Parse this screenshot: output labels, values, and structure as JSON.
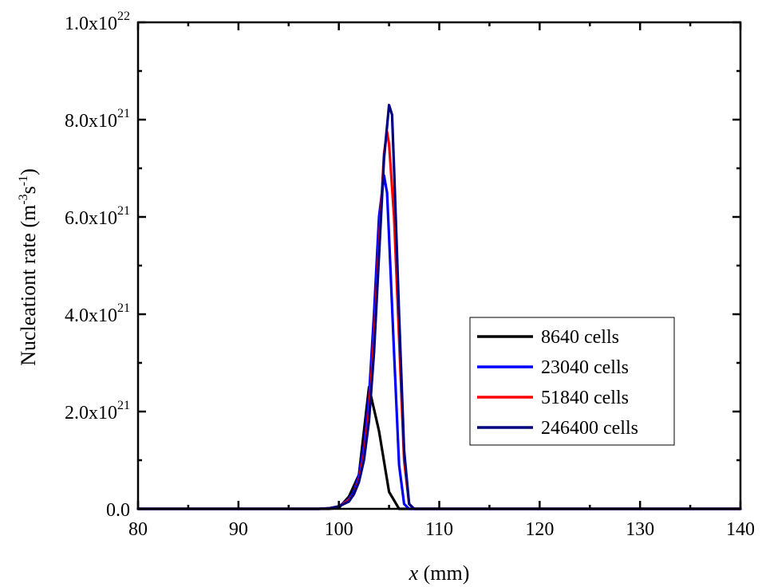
{
  "chart_data": {
    "type": "line",
    "title": "",
    "xlabel": {
      "var": "x",
      "unit": " (mm)"
    },
    "ylabel": {
      "main": "Nucleationt rate (m",
      "exp1": "-3",
      "mid": "s",
      "exp2": "-1",
      "tail": ")"
    },
    "xlim": [
      80,
      140
    ],
    "ylim": [
      0,
      1e+22
    ],
    "x_ticks": [
      {
        "value": 80,
        "label": "80"
      },
      {
        "value": 90,
        "label": "90"
      },
      {
        "value": 100,
        "label": "100"
      },
      {
        "value": 110,
        "label": "110"
      },
      {
        "value": 120,
        "label": "120"
      },
      {
        "value": 130,
        "label": "130"
      },
      {
        "value": 140,
        "label": "140"
      }
    ],
    "y_ticks": [
      {
        "value": 0,
        "mantissa": "0.0",
        "exp": ""
      },
      {
        "value": 2e+21,
        "mantissa": "2.0x10",
        "exp": "21"
      },
      {
        "value": 4e+21,
        "mantissa": "4.0x10",
        "exp": "21"
      },
      {
        "value": 6e+21,
        "mantissa": "6.0x10",
        "exp": "21"
      },
      {
        "value": 8e+21,
        "mantissa": "8.0x10",
        "exp": "21"
      },
      {
        "value": 1e+22,
        "mantissa": "1.0x10",
        "exp": "22"
      }
    ],
    "grid": false,
    "legend_position": "bottom-right",
    "series": [
      {
        "name": "8640 cells",
        "color": "#000000",
        "points": [
          [
            80,
            0
          ],
          [
            99,
            0
          ],
          [
            100,
            2e+19
          ],
          [
            101,
            2.5e+20
          ],
          [
            102,
            7e+20
          ],
          [
            103,
            2.5e+21
          ],
          [
            104,
            1.6e+21
          ],
          [
            105,
            3.5e+20
          ],
          [
            106,
            0
          ],
          [
            140,
            0
          ]
        ]
      },
      {
        "name": "23040 cells",
        "color": "#0000ff",
        "points": [
          [
            80,
            0
          ],
          [
            98,
            0
          ],
          [
            99,
            1e+19
          ],
          [
            100,
            5e+19
          ],
          [
            101,
            2e+20
          ],
          [
            101.5,
            3.5e+20
          ],
          [
            102,
            7e+20
          ],
          [
            102.5,
            1.3e+21
          ],
          [
            103,
            2.3e+21
          ],
          [
            103.5,
            4e+21
          ],
          [
            104,
            6e+21
          ],
          [
            104.5,
            6.85e+21
          ],
          [
            104.8,
            6.5e+21
          ],
          [
            105,
            5.6e+21
          ],
          [
            105.5,
            3.2e+21
          ],
          [
            106,
            9e+20
          ],
          [
            106.5,
            1e+20
          ],
          [
            107,
            0
          ],
          [
            140,
            0
          ]
        ]
      },
      {
        "name": "51840 cells",
        "color": "#ff0000",
        "points": [
          [
            80,
            0
          ],
          [
            98,
            0
          ],
          [
            99,
            1e+19
          ],
          [
            100,
            5e+19
          ],
          [
            101,
            1.8e+20
          ],
          [
            101.5,
            3e+20
          ],
          [
            102,
            6e+20
          ],
          [
            102.5,
            1.1e+21
          ],
          [
            103,
            2e+21
          ],
          [
            103.5,
            3.5e+21
          ],
          [
            104,
            5.4e+21
          ],
          [
            104.5,
            7.3e+21
          ],
          [
            104.8,
            7.75e+21
          ],
          [
            105,
            7.5e+21
          ],
          [
            105.5,
            6e+21
          ],
          [
            106,
            3.5e+21
          ],
          [
            106.5,
            1e+21
          ],
          [
            107,
            1e+20
          ],
          [
            107.5,
            0
          ],
          [
            140,
            0
          ]
        ]
      },
      {
        "name": "246400 cells",
        "color": "#000080",
        "points": [
          [
            80,
            0
          ],
          [
            98,
            0
          ],
          [
            99,
            1e+19
          ],
          [
            100,
            5e+19
          ],
          [
            101,
            1.5e+20
          ],
          [
            101.5,
            3e+20
          ],
          [
            102,
            5.5e+20
          ],
          [
            102.5,
            1e+21
          ],
          [
            103,
            1.8e+21
          ],
          [
            103.5,
            3.2e+21
          ],
          [
            104,
            5.2e+21
          ],
          [
            104.5,
            7.2e+21
          ],
          [
            105,
            8.3e+21
          ],
          [
            105.3,
            8.1e+21
          ],
          [
            105.5,
            7e+21
          ],
          [
            106,
            4e+21
          ],
          [
            106.5,
            1.2e+21
          ],
          [
            107,
            1e+20
          ],
          [
            107.5,
            0
          ],
          [
            140,
            0
          ]
        ]
      }
    ]
  }
}
